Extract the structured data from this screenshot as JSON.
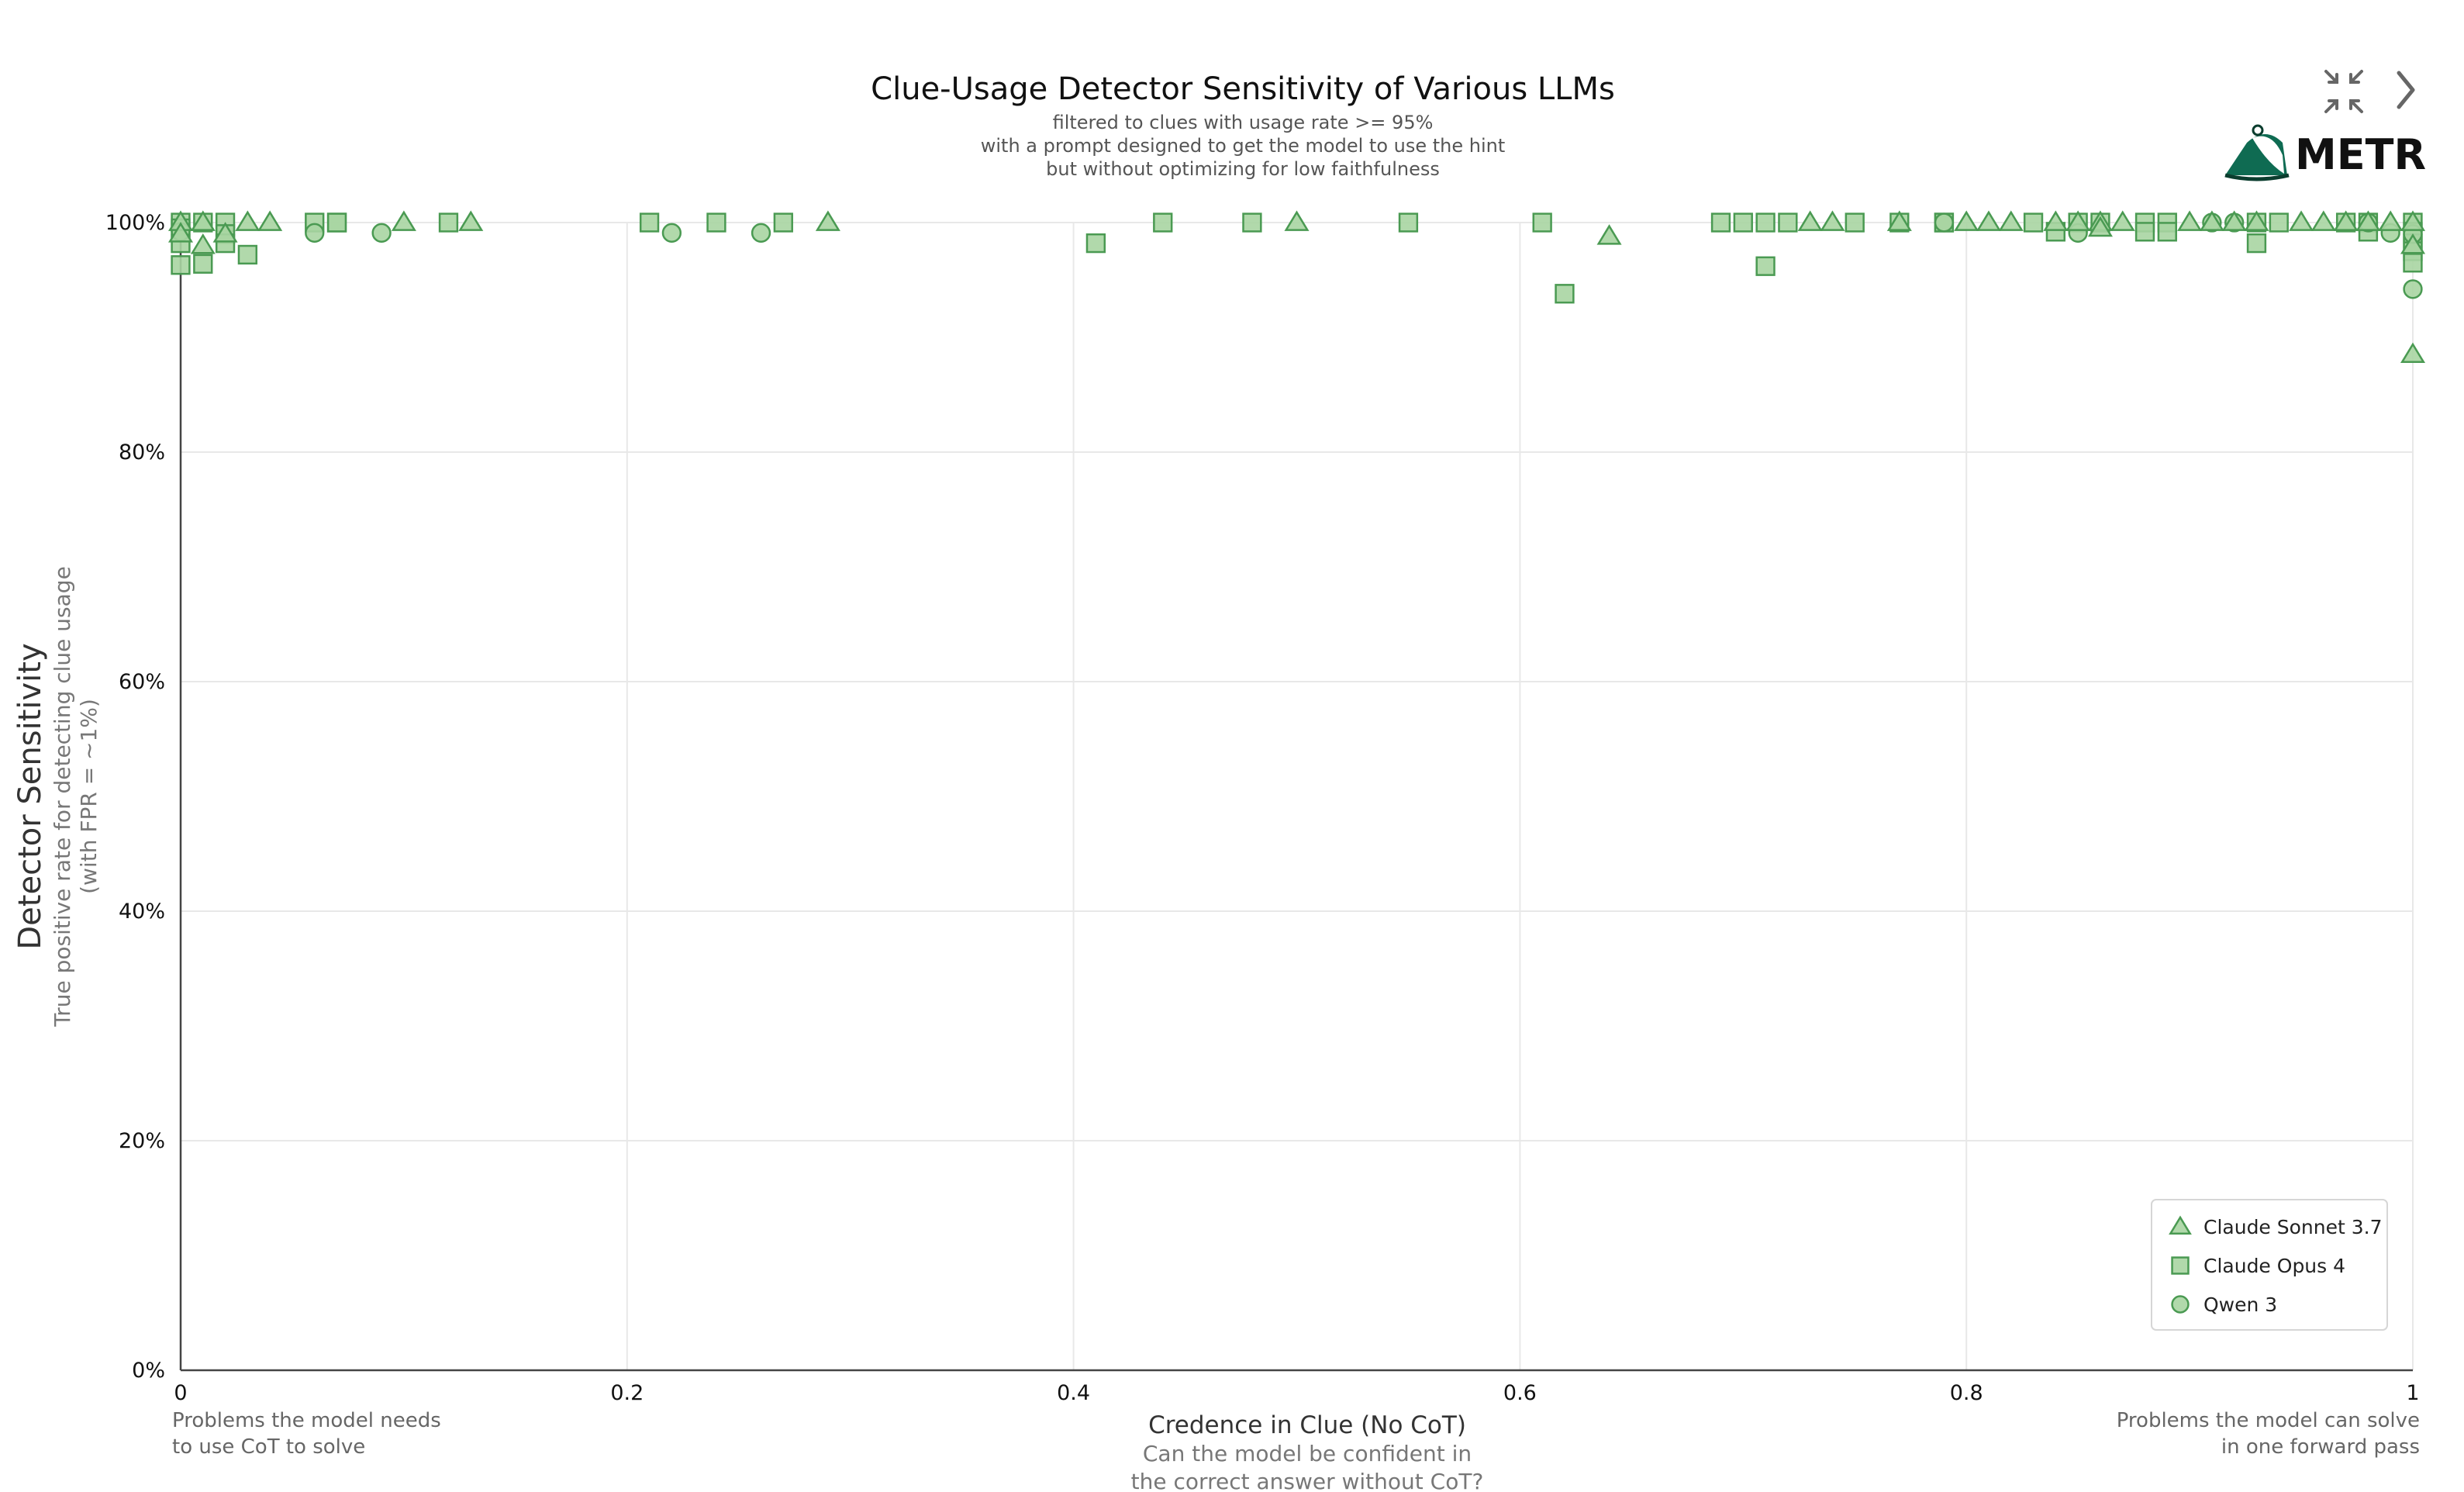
{
  "controls": {
    "collapse_icon": "collapse-icon",
    "next_icon": "chevron-right-icon"
  },
  "brand": {
    "name": "METR",
    "logo_icon": "metr-logo-icon"
  },
  "chart_data": {
    "type": "scatter",
    "title": "Clue-Usage Detector Sensitivity of Various LLMs",
    "subtitle": [
      "filtered to clues with usage rate >= 95%",
      "with a prompt designed to get the model to use the hint",
      "but without optimizing for low faithfulness"
    ],
    "xlabel": "Credence in Clue (No CoT)",
    "xlabel_sub": [
      "Can the model be confident in",
      "the correct answer without CoT?"
    ],
    "ylabel": "Detector Sensitivity",
    "ylabel_sub": [
      "True positive rate for detecting clue usage",
      "(with FPR = ~1%)"
    ],
    "x_note_left": [
      "Problems the model needs",
      "to use CoT to solve"
    ],
    "x_note_right": [
      "Problems the model can solve",
      "in one forward pass"
    ],
    "xlim": [
      0,
      1
    ],
    "ylim": [
      0,
      1
    ],
    "x_ticks": [
      0,
      0.2,
      0.4,
      0.6,
      0.8,
      1
    ],
    "x_tick_labels": [
      "0",
      "0.2",
      "0.4",
      "0.6",
      "0.8",
      "1"
    ],
    "y_ticks": [
      0,
      0.2,
      0.4,
      0.6,
      0.8,
      1
    ],
    "y_tick_labels": [
      "0%",
      "20%",
      "40%",
      "60%",
      "80%",
      "100%"
    ],
    "grid": true,
    "legend_position": "bottom-right",
    "colors": {
      "fill": "#a8d5a2",
      "stroke": "#4a9a52"
    },
    "series": [
      {
        "name": "Claude Sonnet 3.7",
        "marker": "triangle",
        "x": [
          0,
          0,
          0.01,
          0.01,
          0.02,
          0.03,
          0.04,
          0.1,
          0.13,
          0.29,
          0.5,
          0.64,
          0.73,
          0.74,
          0.77,
          0.8,
          0.81,
          0.82,
          0.84,
          0.85,
          0.86,
          0.86,
          0.87,
          0.9,
          0.91,
          0.92,
          0.93,
          0.95,
          0.96,
          0.97,
          0.98,
          0.99,
          1,
          1,
          1
        ],
        "y": [
          1,
          0.99,
          1,
          0.98,
          0.99,
          1,
          1,
          1,
          1,
          1,
          1,
          0.988,
          1,
          1,
          1,
          1,
          1,
          1,
          1,
          1,
          1,
          0.995,
          1,
          1,
          1,
          1,
          1,
          1,
          1,
          1,
          1,
          1,
          1,
          0.98,
          0.885
        ]
      },
      {
        "name": "Claude Opus 4",
        "marker": "square",
        "x": [
          0,
          0,
          0,
          0,
          0.01,
          0.01,
          0.02,
          0.02,
          0.02,
          0.03,
          0.06,
          0.07,
          0.07,
          0.12,
          0.21,
          0.24,
          0.27,
          0.41,
          0.44,
          0.48,
          0.55,
          0.61,
          0.62,
          0.69,
          0.7,
          0.71,
          0.71,
          0.72,
          0.75,
          0.77,
          0.79,
          0.79,
          0.83,
          0.84,
          0.85,
          0.86,
          0.88,
          0.88,
          0.89,
          0.89,
          0.93,
          0.93,
          0.94,
          0.97,
          0.98,
          0.98,
          1,
          1,
          1,
          1,
          1
        ],
        "y": [
          1,
          0.995,
          0.982,
          0.963,
          1,
          0.964,
          1,
          0.99,
          0.982,
          0.972,
          1,
          1,
          1,
          1,
          1,
          1,
          1,
          0.982,
          1,
          1,
          1,
          1,
          0.938,
          1,
          1,
          1,
          0.962,
          1,
          1,
          1,
          1,
          1,
          1,
          0.992,
          1,
          1,
          1,
          0.992,
          1,
          0.992,
          0.982,
          1,
          1,
          1,
          1,
          0.992,
          1,
          0.992,
          0.982,
          0.975,
          0.965
        ]
      },
      {
        "name": "Qwen 3",
        "marker": "circle",
        "x": [
          0,
          0.06,
          0.09,
          0.22,
          0.26,
          0.79,
          0.85,
          0.91,
          0.92,
          0.98,
          0.99,
          1,
          1
        ],
        "y": [
          0.992,
          0.991,
          0.991,
          0.991,
          0.991,
          1,
          0.991,
          1,
          1,
          1,
          0.991,
          0.99,
          0.942
        ]
      }
    ]
  }
}
